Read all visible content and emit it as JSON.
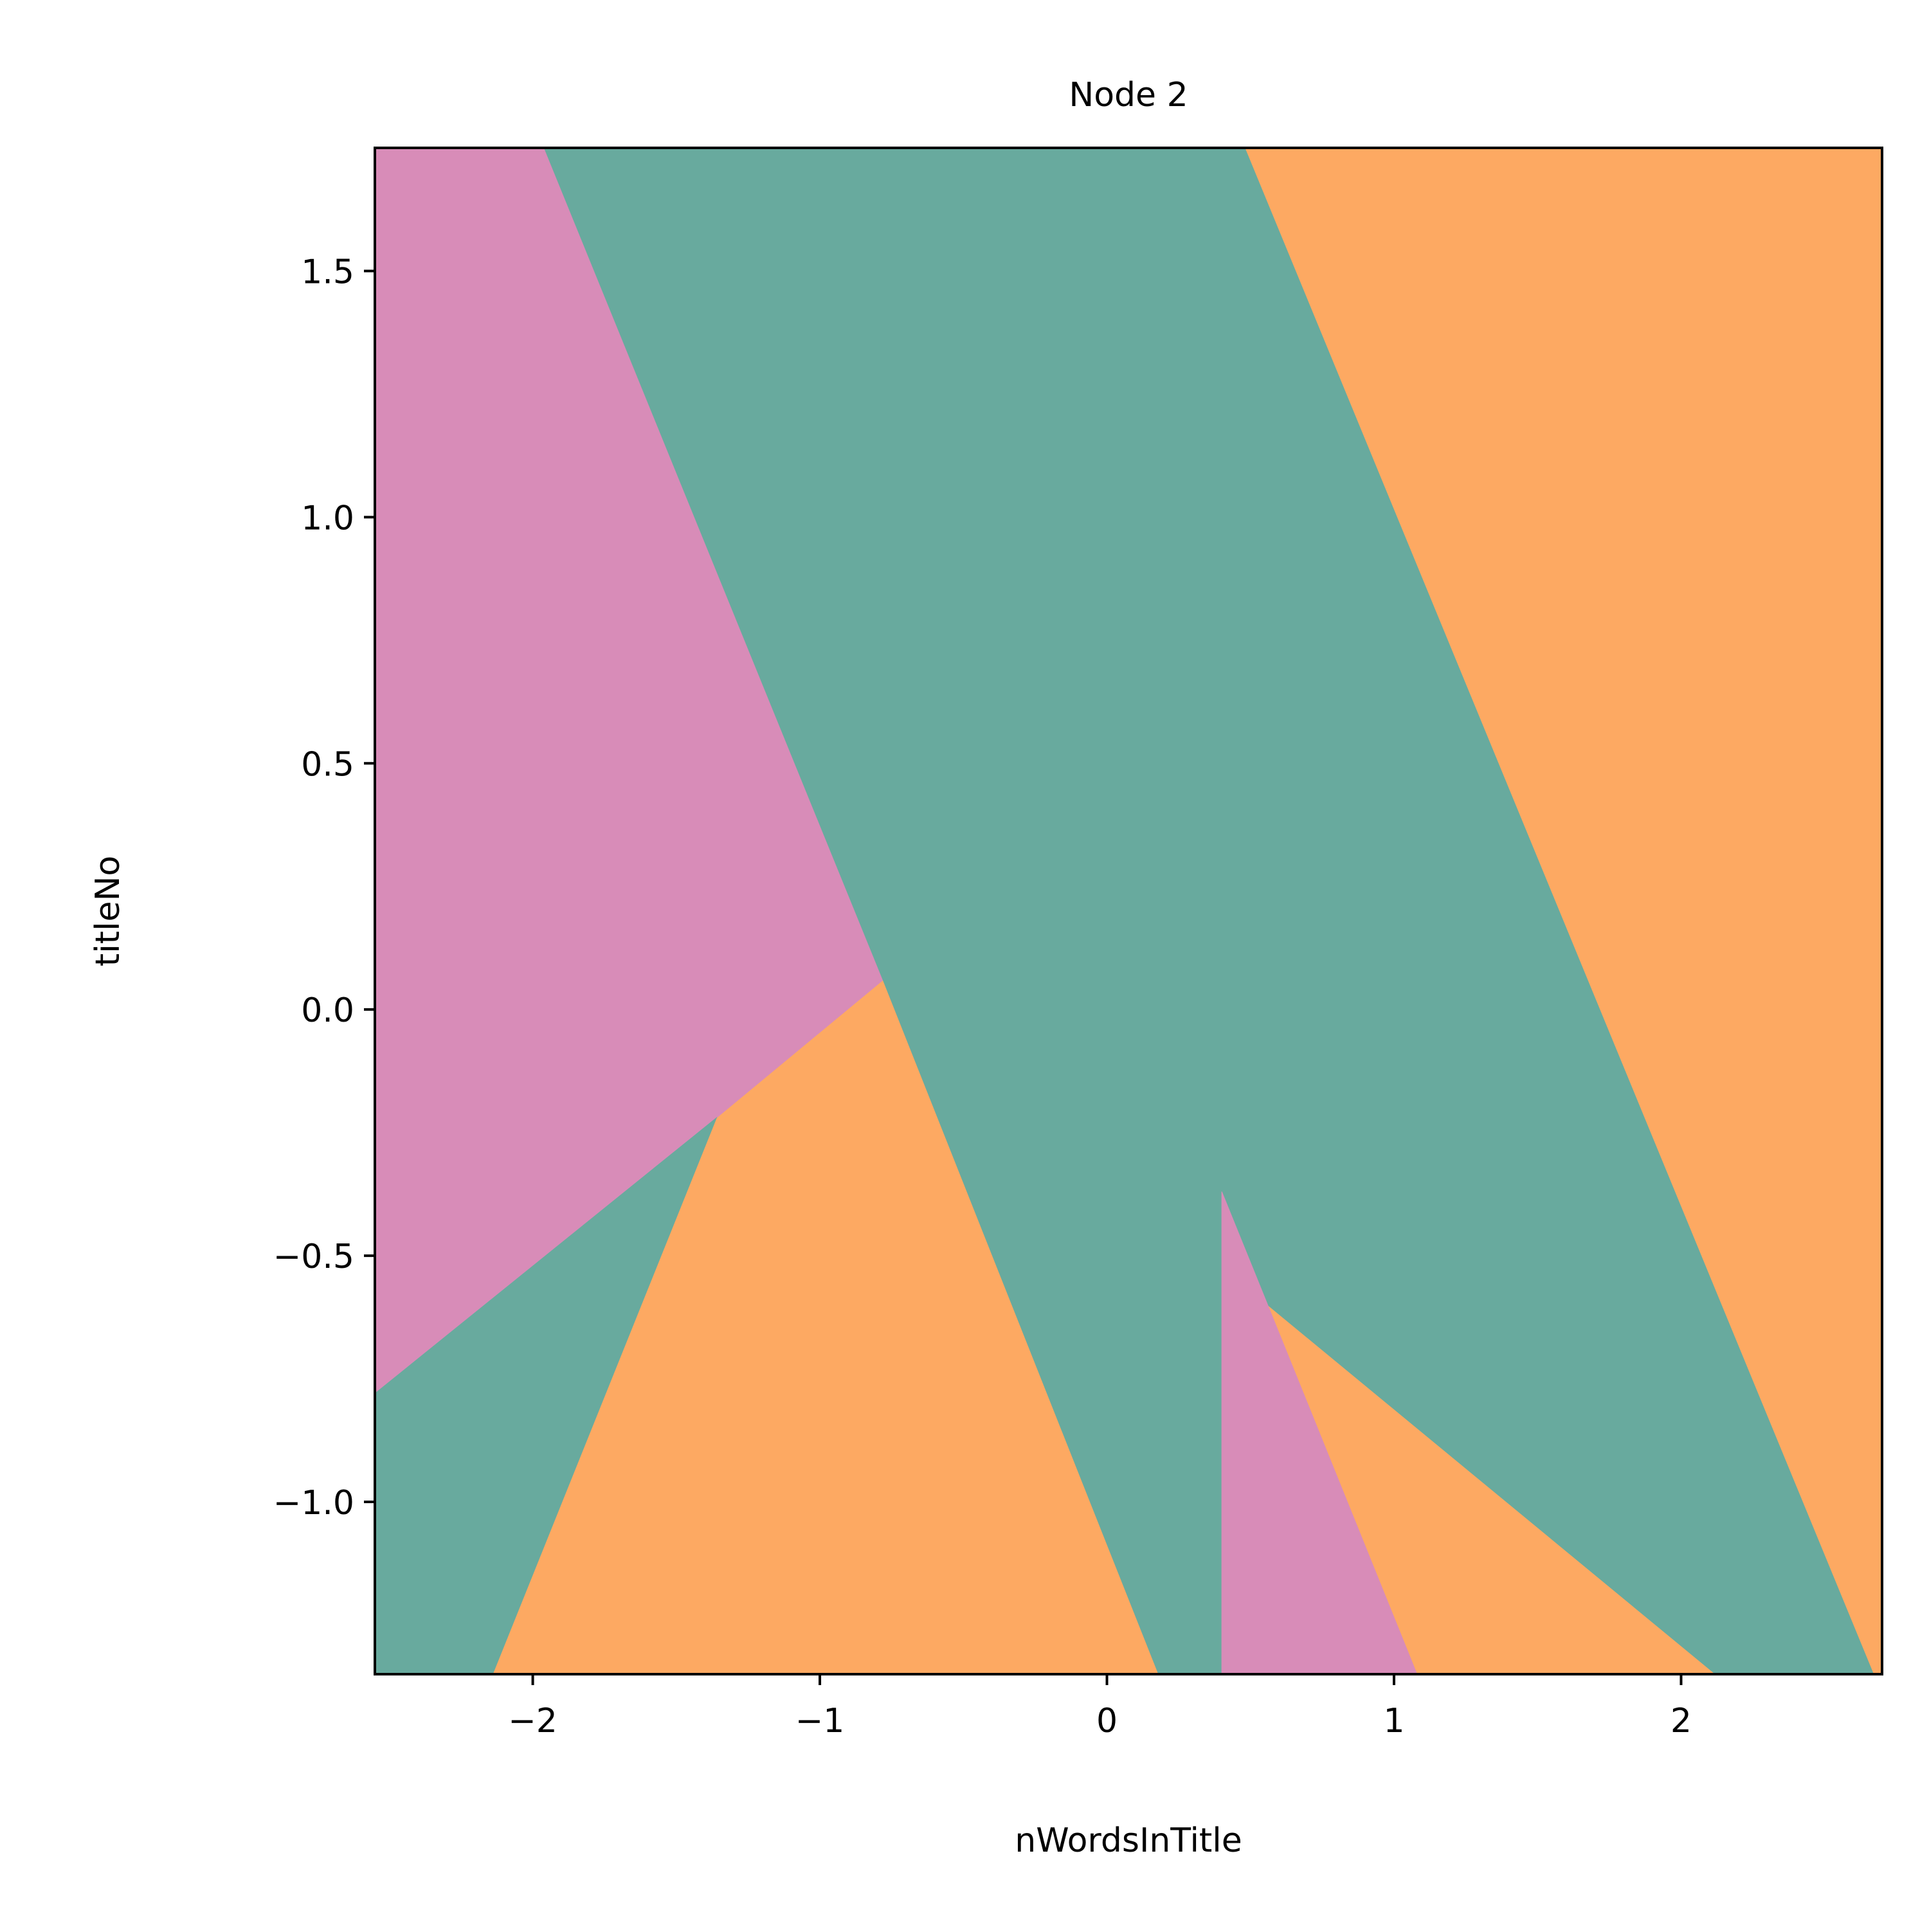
{
  "chart_data": {
    "type": "heatmap",
    "title": "Node 2",
    "xlabel": "nWordsInTitle",
    "ylabel": "titleNo",
    "xlim": [
      -2.55,
      2.7
    ],
    "ylim": [
      -1.35,
      1.75
    ],
    "x_ticks": [
      {
        "value": -2,
        "label": "−2"
      },
      {
        "value": -1,
        "label": "−1"
      },
      {
        "value": 0,
        "label": "0"
      },
      {
        "value": 1,
        "label": "1"
      },
      {
        "value": 2,
        "label": "2"
      }
    ],
    "y_ticks": [
      {
        "value": -1.0,
        "label": "−1.0"
      },
      {
        "value": -0.5,
        "label": "−0.5"
      },
      {
        "value": 0.0,
        "label": "0.0"
      },
      {
        "value": 0.5,
        "label": "0.5"
      },
      {
        "value": 1.0,
        "label": "1.0"
      },
      {
        "value": 1.5,
        "label": "1.5"
      }
    ],
    "grid": false,
    "colors": {
      "pink": "#d88cb8",
      "teal": "#68aa9e",
      "orange": "#fda962",
      "axes": "#000000"
    },
    "regions": [
      {
        "color": "orange",
        "points": [
          [
            -2.55,
            -1.35
          ],
          [
            2.7,
            -1.35
          ],
          [
            2.7,
            1.75
          ],
          [
            -2.55,
            1.75
          ]
        ]
      },
      {
        "color": "pink",
        "points": [
          [
            -2.55,
            1.75
          ],
          [
            -1.96,
            1.75
          ],
          [
            -0.78,
            0.06
          ],
          [
            -1.36,
            -0.22
          ],
          [
            -2.55,
            -0.78
          ]
        ]
      },
      {
        "color": "teal",
        "points": [
          [
            -2.55,
            -0.78
          ],
          [
            -1.36,
            -0.22
          ],
          [
            -2.14,
            -1.35
          ],
          [
            -2.55,
            -1.35
          ]
        ]
      },
      {
        "color": "teal",
        "points": [
          [
            -1.96,
            1.75
          ],
          [
            0.48,
            1.75
          ],
          [
            2.67,
            -1.35
          ],
          [
            2.12,
            -1.35
          ],
          [
            0.56,
            -0.6
          ],
          [
            0.4,
            -0.37
          ],
          [
            0.4,
            -1.35
          ],
          [
            0.18,
            -1.35
          ],
          [
            -0.78,
            0.06
          ]
        ]
      },
      {
        "color": "pink",
        "points": [
          [
            0.4,
            -0.37
          ],
          [
            0.56,
            -0.6
          ],
          [
            1.08,
            -1.35
          ],
          [
            0.4,
            -1.35
          ]
        ]
      }
    ]
  }
}
